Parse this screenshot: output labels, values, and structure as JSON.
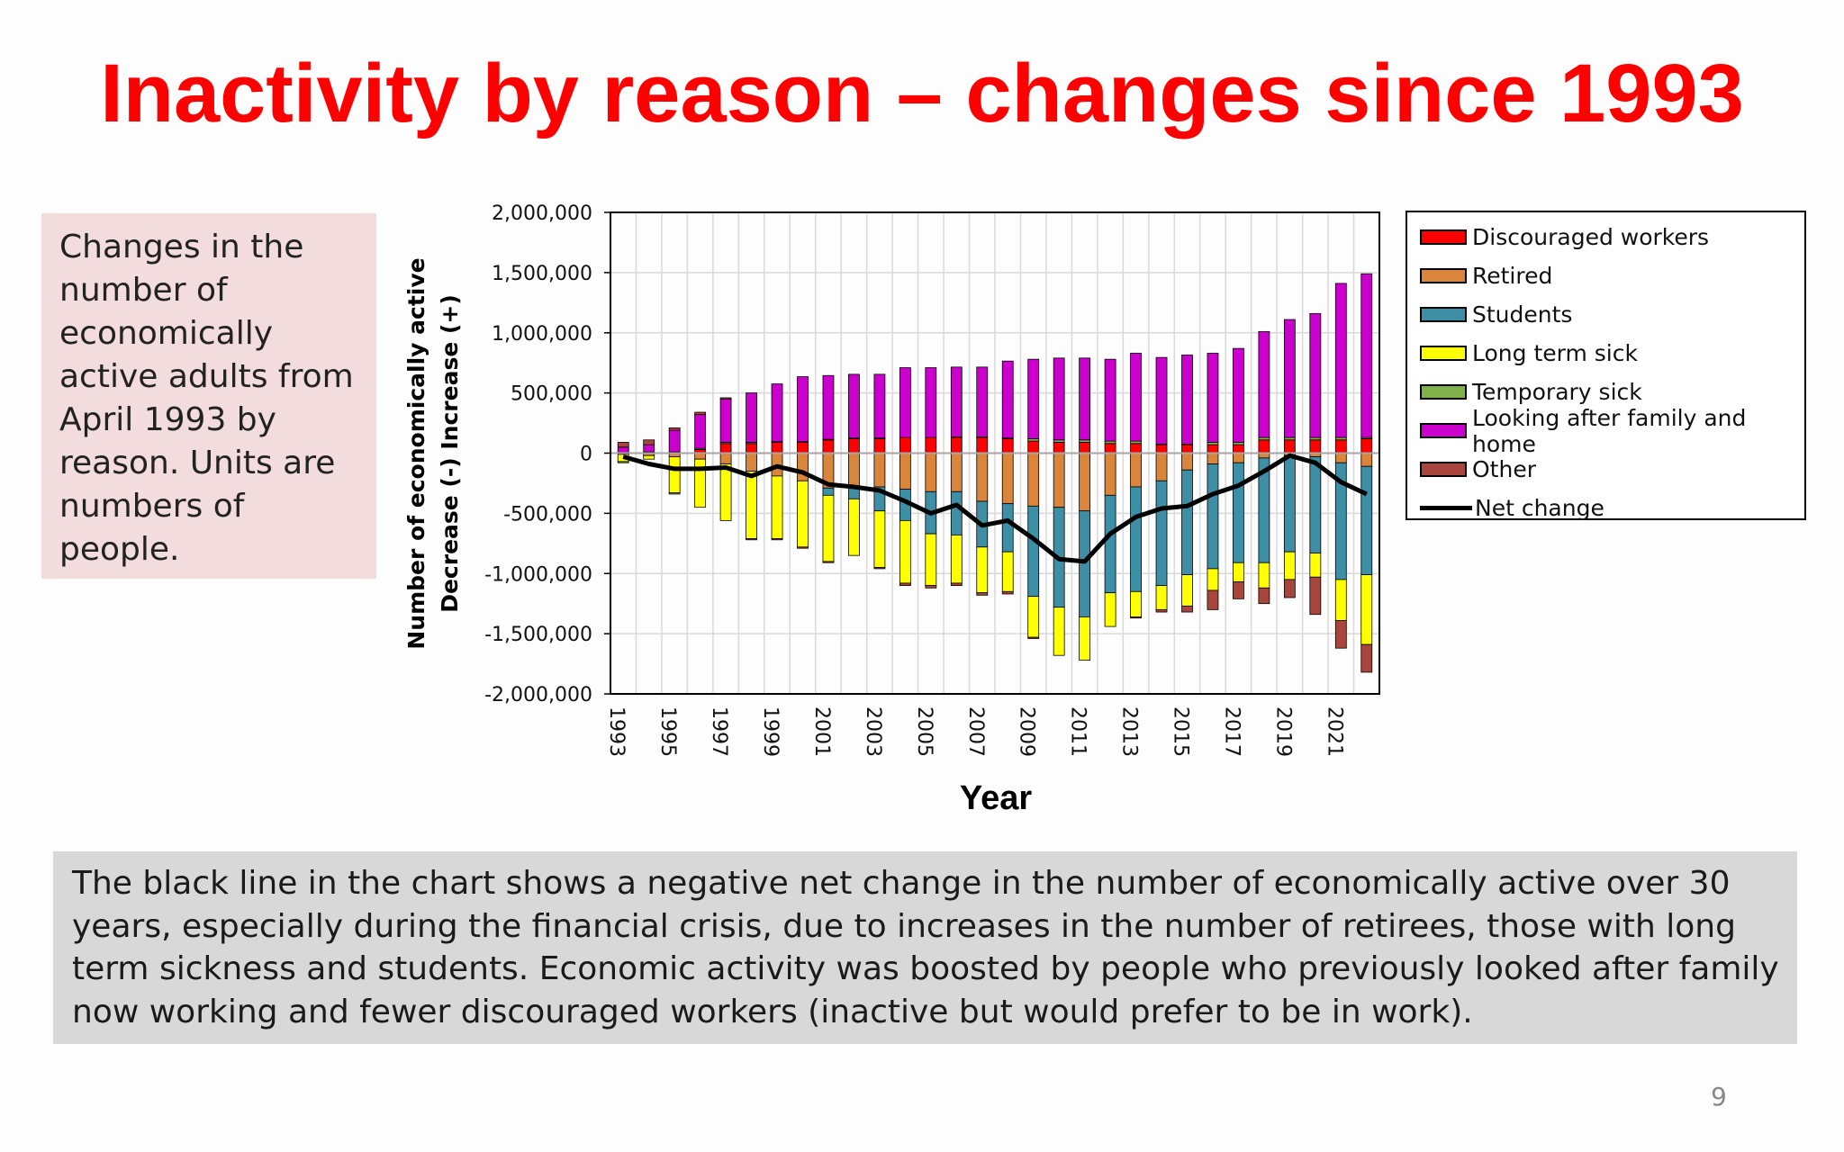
{
  "slide": {
    "title": "Inactivity by reason – changes since 1993",
    "side_note": "Changes in the number of economically active adults from April 1993 by reason. Units are numbers of people.",
    "bottom_note": "The black line in the chart shows a negative net change in the number of economically active over 30 years, especially during the financial crisis, due to increases in the number of retirees, those with long term sickness and students. Economic activity was boosted by people who previously looked after family now working and fewer discouraged workers (inactive but  would prefer to be in work).",
    "page_number": "9"
  },
  "chart_data": {
    "type": "bar",
    "stacked": true,
    "xlabel": "Year",
    "ylabel_line1": "Number of economically active",
    "ylabel_line2": "Decrease  (-) Increase (+)",
    "ylim": [
      -2000000,
      2000000
    ],
    "yticks": [
      2000000,
      1500000,
      1000000,
      500000,
      0,
      -500000,
      -1000000,
      -1500000,
      -2000000
    ],
    "ytick_labels": [
      "2,000,000",
      "1,500,000",
      "1,000,000",
      "500,000",
      "0",
      "-500,000",
      "-1,000,000",
      "-1,500,000",
      "-2,000,000"
    ],
    "grid": true,
    "legend_position": "right",
    "categories": [
      "1993",
      "1994",
      "1995",
      "1996",
      "1997",
      "1998",
      "1999",
      "2000",
      "2001",
      "2002",
      "2003",
      "2004",
      "2005",
      "2006",
      "2007",
      "2008",
      "2009",
      "2010",
      "2011",
      "2012",
      "2013",
      "2014",
      "2015",
      "2016",
      "2017",
      "2018",
      "2019",
      "2020",
      "2021",
      "2022"
    ],
    "xtick_labels": [
      "1993",
      "1995",
      "1997",
      "1999",
      "2001",
      "2003",
      "2005",
      "2007",
      "2009",
      "2011",
      "2013",
      "2015",
      "2017",
      "2019",
      "2021"
    ],
    "series": [
      {
        "name": "Discouraged workers",
        "color": "#ff0000",
        "values": [
          0,
          10000,
          10000,
          30000,
          80000,
          80000,
          90000,
          90000,
          110000,
          120000,
          120000,
          130000,
          130000,
          130000,
          130000,
          120000,
          100000,
          90000,
          90000,
          80000,
          80000,
          70000,
          70000,
          70000,
          70000,
          110000,
          110000,
          110000,
          110000,
          120000
        ]
      },
      {
        "name": "Retired",
        "color": "#d9853b",
        "values": [
          -10000,
          -20000,
          -30000,
          -50000,
          -90000,
          -150000,
          -190000,
          -230000,
          -290000,
          -280000,
          -280000,
          -300000,
          -320000,
          -320000,
          -400000,
          -420000,
          -440000,
          -450000,
          -480000,
          -350000,
          -280000,
          -230000,
          -140000,
          -90000,
          -80000,
          -40000,
          -20000,
          -30000,
          -80000,
          -110000
        ]
      },
      {
        "name": "Students",
        "color": "#3e8fa6",
        "values": [
          0,
          0,
          0,
          0,
          0,
          0,
          0,
          0,
          -60000,
          -100000,
          -200000,
          -260000,
          -350000,
          -360000,
          -380000,
          -400000,
          -750000,
          -830000,
          -880000,
          -810000,
          -870000,
          -870000,
          -870000,
          -870000,
          -830000,
          -870000,
          -800000,
          -800000,
          -970000,
          -900000
        ]
      },
      {
        "name": "Long term sick",
        "color": "#ffff00",
        "values": [
          -60000,
          -30000,
          -300000,
          -400000,
          -470000,
          -560000,
          -520000,
          -550000,
          -550000,
          -470000,
          -470000,
          -520000,
          -430000,
          -400000,
          -380000,
          -330000,
          -340000,
          -400000,
          -360000,
          -280000,
          -210000,
          -200000,
          -260000,
          -180000,
          -160000,
          -210000,
          -230000,
          -200000,
          -340000,
          -580000
        ]
      },
      {
        "name": "Temporary sick",
        "color": "#7fb04a",
        "values": [
          -10000,
          0,
          -10000,
          10000,
          10000,
          10000,
          5000,
          5000,
          5000,
          5000,
          5000,
          0,
          0,
          5000,
          5000,
          5000,
          20000,
          20000,
          20000,
          20000,
          20000,
          5000,
          5000,
          20000,
          20000,
          20000,
          20000,
          20000,
          20000,
          10000
        ]
      },
      {
        "name": "Looking after family and home",
        "color": "#cc00cc",
        "values": [
          50000,
          60000,
          180000,
          280000,
          360000,
          410000,
          480000,
          540000,
          530000,
          530000,
          530000,
          580000,
          580000,
          580000,
          580000,
          640000,
          660000,
          680000,
          680000,
          680000,
          730000,
          720000,
          740000,
          740000,
          780000,
          880000,
          980000,
          1030000,
          1280000,
          1360000
        ]
      },
      {
        "name": "Other",
        "color": "#a8453c",
        "values": [
          40000,
          40000,
          20000,
          20000,
          10000,
          -10000,
          -10000,
          -10000,
          -10000,
          0,
          -10000,
          -20000,
          -20000,
          -20000,
          -20000,
          -20000,
          -10000,
          0,
          0,
          0,
          -10000,
          -20000,
          -50000,
          -160000,
          -140000,
          -130000,
          -150000,
          -310000,
          -230000,
          -230000
        ]
      }
    ],
    "line": {
      "name": "Net change",
      "color": "#000000",
      "values": [
        -30000,
        -90000,
        -130000,
        -130000,
        -120000,
        -190000,
        -110000,
        -160000,
        -260000,
        -280000,
        -310000,
        -400000,
        -500000,
        -430000,
        -600000,
        -560000,
        -710000,
        -880000,
        -900000,
        -670000,
        -530000,
        -460000,
        -440000,
        -340000,
        -270000,
        -150000,
        -20000,
        -80000,
        -240000,
        -340000
      ]
    }
  }
}
